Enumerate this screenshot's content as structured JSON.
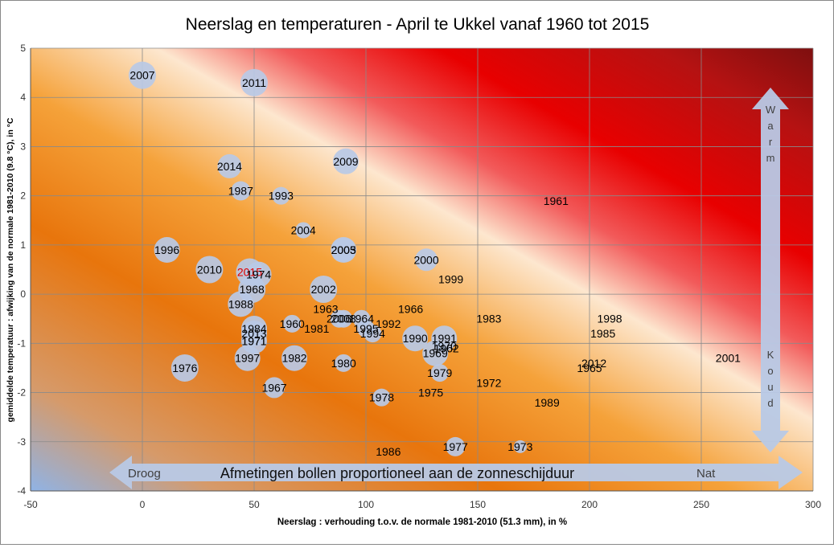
{
  "chart_data": {
    "type": "scatter",
    "title": "Neerslag en temperaturen - April te Ukkel vanaf 1960 tot 2015",
    "xlabel": "Neerslag : verhouding t.o.v. de normale 1981-2010  (51.3 mm),  in %",
    "ylabel": "gemiddelde temperatuur : afwijking van de normale 1981-2010  (9.8 °C),  in °C",
    "xlim": [
      -50,
      300
    ],
    "ylim": [
      -4,
      5
    ],
    "x_ticks": [
      -50,
      0,
      50,
      100,
      150,
      200,
      250,
      300
    ],
    "y_ticks": [
      -4,
      -3,
      -2,
      -1,
      0,
      1,
      2,
      3,
      4,
      5
    ],
    "grid": true,
    "bubble_note": "Afmetingen bollen proportioneel aan de zonneschijduur",
    "arrow_left_label": "Droog",
    "arrow_right_label": "Nat",
    "arrow_up_label": "Warm",
    "arrow_down_label": "Koud",
    "highlight_color": "#e00000",
    "bubble_color": "#b8c9e6",
    "points": [
      {
        "year": "2007",
        "x": 0,
        "y": 4.45,
        "size": 17
      },
      {
        "year": "2011",
        "x": 50,
        "y": 4.3,
        "size": 17
      },
      {
        "year": "2009",
        "x": 91,
        "y": 2.7,
        "size": 16
      },
      {
        "year": "2014",
        "x": 39,
        "y": 2.6,
        "size": 15
      },
      {
        "year": "1987",
        "x": 44,
        "y": 2.1,
        "size": 12
      },
      {
        "year": "1993",
        "x": 62,
        "y": 2.0,
        "size": 11
      },
      {
        "year": "1961",
        "x": 185,
        "y": 1.9,
        "size": 0
      },
      {
        "year": "2004",
        "x": 72,
        "y": 1.3,
        "size": 10
      },
      {
        "year": "1996",
        "x": 11,
        "y": 0.9,
        "size": 16
      },
      {
        "year": "2005",
        "x": 90,
        "y": 0.9,
        "size": 15
      },
      {
        "year": "2003",
        "x": 90,
        "y": 0.9,
        "size": 16
      },
      {
        "year": "2000",
        "x": 127,
        "y": 0.7,
        "size": 14
      },
      {
        "year": "2010",
        "x": 30,
        "y": 0.5,
        "size": 17
      },
      {
        "year": "2015",
        "x": 48,
        "y": 0.45,
        "size": 17,
        "highlight": true
      },
      {
        "year": "1974",
        "x": 52,
        "y": 0.4,
        "size": 16
      },
      {
        "year": "1999",
        "x": 138,
        "y": 0.3,
        "size": 0
      },
      {
        "year": "1968",
        "x": 49,
        "y": 0.1,
        "size": 17
      },
      {
        "year": "2002",
        "x": 81,
        "y": 0.1,
        "size": 17
      },
      {
        "year": "1988",
        "x": 44,
        "y": -0.2,
        "size": 16
      },
      {
        "year": "1963",
        "x": 82,
        "y": -0.3,
        "size": 0
      },
      {
        "year": "1966",
        "x": 120,
        "y": -0.3,
        "size": 0
      },
      {
        "year": "1983",
        "x": 155,
        "y": -0.5,
        "size": 0
      },
      {
        "year": "1998",
        "x": 209,
        "y": -0.5,
        "size": 0
      },
      {
        "year": "2006",
        "x": 88,
        "y": -0.5,
        "size": 11
      },
      {
        "year": "2008",
        "x": 90,
        "y": -0.5,
        "size": 11
      },
      {
        "year": "1964",
        "x": 98,
        "y": -0.5,
        "size": 11
      },
      {
        "year": "1960",
        "x": 67,
        "y": -0.6,
        "size": 11
      },
      {
        "year": "1992",
        "x": 110,
        "y": -0.6,
        "size": 0
      },
      {
        "year": "1981",
        "x": 78,
        "y": -0.7,
        "size": 0
      },
      {
        "year": "1984",
        "x": 50,
        "y": -0.7,
        "size": 16
      },
      {
        "year": "1995",
        "x": 100,
        "y": -0.7,
        "size": 11
      },
      {
        "year": "1994",
        "x": 103,
        "y": -0.8,
        "size": 11
      },
      {
        "year": "1985",
        "x": 206,
        "y": -0.8,
        "size": 0
      },
      {
        "year": "2013",
        "x": 50,
        "y": -0.8,
        "size": 16
      },
      {
        "year": "1990",
        "x": 122,
        "y": -0.9,
        "size": 16
      },
      {
        "year": "1991",
        "x": 135,
        "y": -0.9,
        "size": 16
      },
      {
        "year": "1971",
        "x": 50,
        "y": -0.95,
        "size": 16
      },
      {
        "year": "1971b",
        "label": "1971",
        "x": 50,
        "y": -0.95,
        "size": 0
      },
      {
        "year": "1970",
        "x": 135,
        "y": -1.05,
        "size": 0
      },
      {
        "year": "1962",
        "x": 136,
        "y": -1.1,
        "size": 0
      },
      {
        "year": "1969",
        "x": 131,
        "y": -1.2,
        "size": 16
      },
      {
        "year": "1997",
        "x": 47,
        "y": -1.3,
        "size": 16
      },
      {
        "year": "1982",
        "x": 68,
        "y": -1.3,
        "size": 16
      },
      {
        "year": "2001",
        "x": 262,
        "y": -1.3,
        "size": 0
      },
      {
        "year": "1980",
        "x": 90,
        "y": -1.4,
        "size": 11
      },
      {
        "year": "2012",
        "x": 202,
        "y": -1.4,
        "size": 0
      },
      {
        "year": "1965",
        "x": 200,
        "y": -1.5,
        "size": 0
      },
      {
        "year": "1976",
        "x": 19,
        "y": -1.5,
        "size": 17
      },
      {
        "year": "1979",
        "x": 133,
        "y": -1.6,
        "size": 11
      },
      {
        "year": "1972",
        "x": 155,
        "y": -1.8,
        "size": 0
      },
      {
        "year": "1967",
        "x": 59,
        "y": -1.9,
        "size": 13
      },
      {
        "year": "1975",
        "x": 129,
        "y": -2.0,
        "size": 0
      },
      {
        "year": "1978",
        "x": 107,
        "y": -2.1,
        "size": 11
      },
      {
        "year": "1989",
        "x": 181,
        "y": -2.2,
        "size": 0
      },
      {
        "year": "1977",
        "x": 140,
        "y": -3.1,
        "size": 12
      },
      {
        "year": "1973",
        "x": 169,
        "y": -3.1,
        "size": 8
      },
      {
        "year": "1986",
        "x": 110,
        "y": -3.2,
        "size": 0
      }
    ]
  }
}
